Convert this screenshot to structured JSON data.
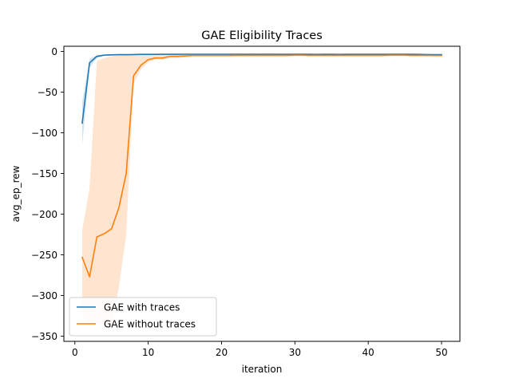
{
  "chart_data": {
    "type": "line",
    "title": "GAE Eligibility Traces",
    "xlabel": "iteration",
    "ylabel": "avg_ep_rew",
    "xlim": [
      -1.5,
      52.5
    ],
    "ylim": [
      -350,
      0
    ],
    "xticks": [
      0,
      10,
      20,
      30,
      40,
      50
    ],
    "yticks": [
      0,
      -50,
      -100,
      -150,
      -200,
      -250,
      -300,
      -350
    ],
    "grid": false,
    "legend_position": "lower-left",
    "series": [
      {
        "name": "GAE with traces",
        "color": "#1f77b4",
        "x": [
          1,
          2,
          3,
          4,
          5,
          6,
          7,
          8,
          9,
          10,
          11,
          12,
          13,
          14,
          15,
          16,
          17,
          18,
          19,
          20,
          21,
          22,
          23,
          24,
          25,
          26,
          27,
          28,
          29,
          30,
          31,
          32,
          33,
          34,
          35,
          36,
          37,
          38,
          39,
          40,
          41,
          42,
          43,
          44,
          45,
          46,
          47,
          48,
          49,
          50
        ],
        "y": [
          -88,
          -14,
          -6,
          -4.5,
          -4.2,
          -4,
          -4,
          -3.8,
          -3.6,
          -3.6,
          -3.6,
          -3.5,
          -3.5,
          -3.5,
          -3.4,
          -3.4,
          -3.4,
          -3.4,
          -3.4,
          -3.4,
          -3.4,
          -3.4,
          -3.5,
          -3.4,
          -3.5,
          -3.4,
          -3.4,
          -3.5,
          -3.5,
          -3.5,
          -3.5,
          -3.5,
          -3.6,
          -3.5,
          -3.5,
          -3.6,
          -3.5,
          -3.5,
          -3.5,
          -3.5,
          -3.5,
          -3.5,
          -3.5,
          -3.5,
          -3.5,
          -3.5,
          -3.6,
          -3.8,
          -4,
          -3.9
        ],
        "band_lower": [
          -115,
          -20,
          -8,
          -5.5,
          -5,
          -5,
          -5,
          -4.5,
          -4.2,
          -4.2,
          -4.2,
          -4.1,
          -4.1,
          -4.1,
          -4,
          -4,
          -4,
          -4,
          -4,
          -4,
          -4,
          -4,
          -4.1,
          -4,
          -4.1,
          -4,
          -4,
          -4.1,
          -4.1,
          -4.1,
          -4.1,
          -4.1,
          -4.2,
          -4.1,
          -4.1,
          -4.2,
          -4.1,
          -4.1,
          -4.1,
          -4.1,
          -4.1,
          -4.1,
          -4.1,
          -4.1,
          -4.1,
          -4.1,
          -4.2,
          -4.4,
          -4.6,
          -4.5
        ],
        "band_upper": [
          -62,
          -9,
          -4.5,
          -3.5,
          -3.4,
          -3.2,
          -3.2,
          -3.1,
          -3,
          -3,
          -3,
          -2.9,
          -2.9,
          -2.9,
          -2.8,
          -2.8,
          -2.8,
          -2.8,
          -2.8,
          -2.8,
          -2.8,
          -2.8,
          -2.9,
          -2.8,
          -2.9,
          -2.8,
          -2.8,
          -2.9,
          -2.9,
          -2.9,
          -2.9,
          -2.9,
          -3,
          -2.9,
          -2.9,
          -3,
          -2.9,
          -2.9,
          -2.9,
          -2.9,
          -2.9,
          -2.9,
          -2.9,
          -2.9,
          -2.9,
          -2.9,
          -3,
          -3.2,
          -3.4,
          -3.3
        ]
      },
      {
        "name": "GAE without traces",
        "color": "#ff7f0e",
        "x": [
          1,
          2,
          3,
          4,
          5,
          6,
          7,
          8,
          9,
          10,
          11,
          12,
          13,
          14,
          15,
          16,
          17,
          18,
          19,
          20,
          21,
          22,
          23,
          24,
          25,
          26,
          27,
          28,
          29,
          30,
          31,
          32,
          33,
          34,
          35,
          36,
          37,
          38,
          39,
          40,
          41,
          42,
          43,
          44,
          45,
          46,
          47,
          48,
          49,
          50
        ],
        "y": [
          -253,
          -277,
          -228,
          -224,
          -218,
          -192,
          -150,
          -30,
          -17,
          -10,
          -8,
          -8,
          -6,
          -6,
          -5.5,
          -5,
          -5,
          -5,
          -5,
          -5,
          -5,
          -4.8,
          -4.8,
          -4.8,
          -4.8,
          -4.8,
          -4.8,
          -4.8,
          -4.8,
          -4.5,
          -4.5,
          -4.8,
          -4.8,
          -4.8,
          -4.8,
          -4.8,
          -4.8,
          -4.8,
          -4.8,
          -4.8,
          -4.8,
          -4.8,
          -4.5,
          -4.5,
          -4.5,
          -4.8,
          -4.8,
          -4.8,
          -5,
          -5
        ],
        "band_lower": [
          -325,
          -335,
          -335,
          -335,
          -335,
          -290,
          -225,
          -40,
          -22,
          -13,
          -10,
          -10,
          -8,
          -8,
          -7,
          -6.5,
          -6.5,
          -6.5,
          -6.5,
          -6.5,
          -6.5,
          -6.2,
          -6.2,
          -6.2,
          -6.2,
          -6.2,
          -6.2,
          -6.2,
          -6.2,
          -6,
          -6,
          -6.2,
          -6.2,
          -6.2,
          -6.2,
          -6.2,
          -6.2,
          -6.2,
          -6.2,
          -6.2,
          -6.2,
          -6.2,
          -6,
          -6,
          -6,
          -6.2,
          -6.2,
          -6.2,
          -6.5,
          -6.5
        ],
        "band_upper": [
          -220,
          -168,
          -12,
          -8,
          -6,
          -5,
          -4,
          -3.5,
          -3.5,
          -3.5,
          -3.5,
          -3.5,
          -3.5,
          -3.5,
          -3.5,
          -3.5,
          -3.5,
          -3.5,
          -3.5,
          -3.5,
          -3.5,
          -3.3,
          -3.3,
          -3.3,
          -3.3,
          -3.3,
          -3.3,
          -3.3,
          -3.3,
          -3,
          -3,
          -3.3,
          -3.3,
          -3.3,
          -3.3,
          -3.3,
          -3.3,
          -3.3,
          -3.3,
          -3.3,
          -3.3,
          -3.3,
          -3,
          -3,
          -3,
          -3.3,
          -3.3,
          -3.3,
          -3.5,
          -3.5
        ]
      }
    ]
  }
}
